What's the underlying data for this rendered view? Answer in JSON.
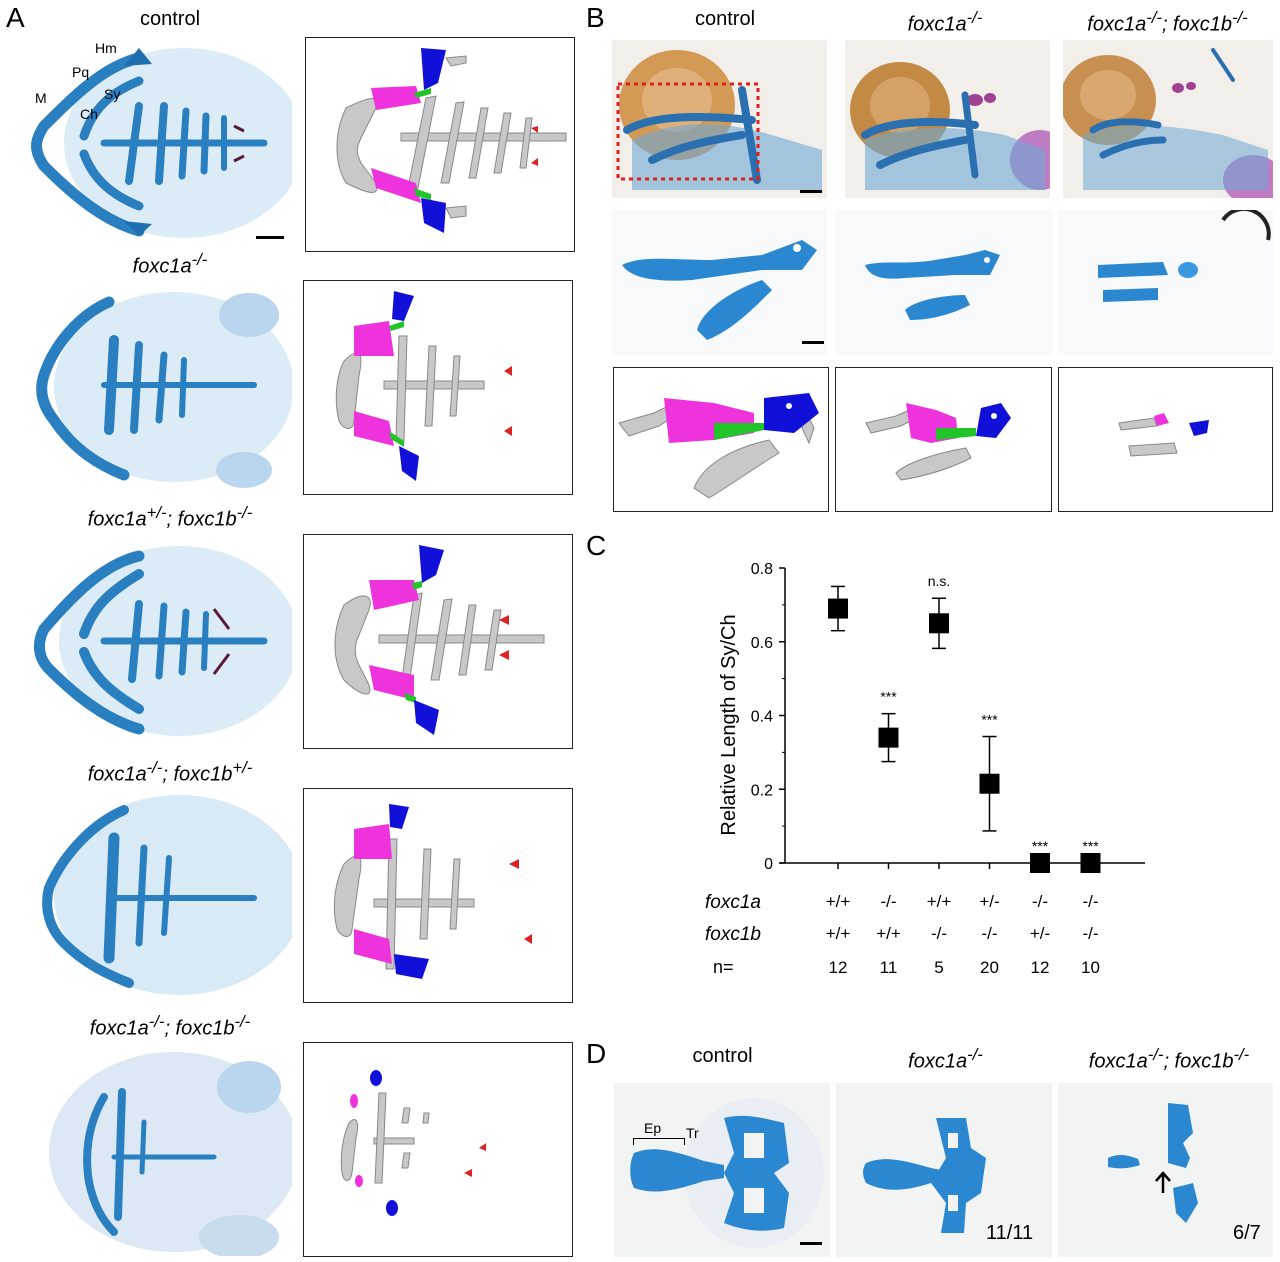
{
  "panels": {
    "A": {
      "letter": "A",
      "captions": [
        {
          "main": "control",
          "sup1": "",
          "mid": "",
          "sup2": ""
        },
        {
          "main": "foxc1a",
          "sup1": "-/-",
          "mid": "",
          "sup2": ""
        },
        {
          "main": "foxc1a",
          "sup1": "+/-",
          "mid": "; foxc1b",
          "sup2": "-/-"
        },
        {
          "main": "foxc1a",
          "sup1": "-/-",
          "mid": "; foxc1b",
          "sup2": "+/-"
        },
        {
          "main": "foxc1a",
          "sup1": "-/-",
          "mid": "; foxc1b",
          "sup2": "-/-"
        }
      ],
      "labels": {
        "Hm": "Hm",
        "Pq": "Pq",
        "M": "M",
        "Sy": "Sy",
        "Ch": "Ch"
      }
    },
    "B": {
      "letter": "B",
      "columns": [
        {
          "main": "control",
          "sup1": "",
          "mid": "",
          "sup2": ""
        },
        {
          "main": "foxc1a",
          "sup1": "-/-",
          "mid": "",
          "sup2": ""
        },
        {
          "main": "foxc1a",
          "sup1": "-/-",
          "mid": "; foxc1b",
          "sup2": "-/-"
        }
      ]
    },
    "C": {
      "letter": "C"
    },
    "D": {
      "letter": "D",
      "columns": [
        {
          "main": "control",
          "sup1": "",
          "mid": "",
          "sup2": ""
        },
        {
          "main": "foxc1a",
          "sup1": "-/-",
          "mid": "",
          "sup2": ""
        },
        {
          "main": "foxc1a",
          "sup1": "-/-",
          "mid": "; foxc1b",
          "sup2": "-/-"
        }
      ],
      "labels": {
        "Ep": "Ep",
        "Tr": "Tr"
      },
      "counts": [
        "11/11",
        "6/7"
      ]
    }
  },
  "colors": {
    "cartilage_blue": "#2a7fc1",
    "hm_blue": "#1010d8",
    "sy_green": "#22c42a",
    "pq_magenta": "#ee33dd",
    "gray_cartilage": "#c8c8c8",
    "tooth_red": "#dd2222",
    "red_box": "#e02020"
  },
  "chart_data": {
    "type": "scatter",
    "ylabel": "Relative Length of Sy/Ch",
    "ylim": [
      0,
      0.8
    ],
    "yticks": [
      "0",
      "0.2",
      "0.4",
      "0.6",
      "0.8"
    ],
    "row_labels": [
      "foxc1a",
      "foxc1b",
      "n="
    ],
    "groups": [
      {
        "foxc1a": "+/+",
        "foxc1b": "+/+",
        "n": "12",
        "mean": 0.69,
        "err": 0.06,
        "sig": ""
      },
      {
        "foxc1a": "-/-",
        "foxc1b": "+/+",
        "n": "11",
        "mean": 0.34,
        "err": 0.065,
        "sig": "***"
      },
      {
        "foxc1a": "+/+",
        "foxc1b": "-/-",
        "n": "5",
        "mean": 0.65,
        "err": 0.068,
        "sig": "n.s."
      },
      {
        "foxc1a": "+/-",
        "foxc1b": "-/-",
        "n": "20",
        "mean": 0.215,
        "err": 0.128,
        "sig": "***"
      },
      {
        "foxc1a": "-/-",
        "foxc1b": "+/-",
        "n": "12",
        "mean": 0.0,
        "err": 0.0,
        "sig": "***"
      },
      {
        "foxc1a": "-/-",
        "foxc1b": "-/-",
        "n": "10",
        "mean": 0.0,
        "err": 0.0,
        "sig": "***"
      }
    ]
  }
}
